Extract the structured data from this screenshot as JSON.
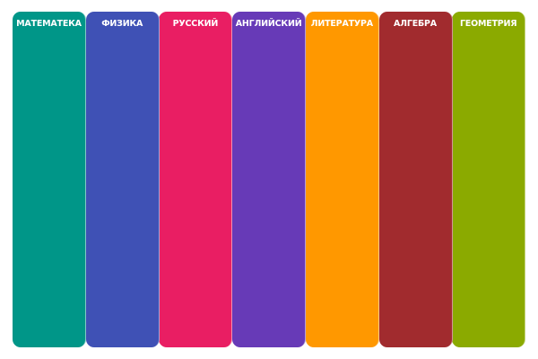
{
  "subjects": [
    {
      "title": "МАТЕМАТЕКА",
      "color": "#009688"
    },
    {
      "title": "ФИЗИКА",
      "color": "#3F51B5"
    },
    {
      "title": "РУССКИЙ",
      "color": "#E91E63"
    },
    {
      "title": "АНГЛИЙСКИЙ",
      "color": "#673AB7"
    },
    {
      "title": "ЛИТЕРАТУРА",
      "color": "#FF9800"
    },
    {
      "title": "АЛГЕБРА",
      "color": "#A12B2E"
    },
    {
      "title": "ГЕОМЕТРИЯ",
      "color": "#8BAA00"
    }
  ]
}
